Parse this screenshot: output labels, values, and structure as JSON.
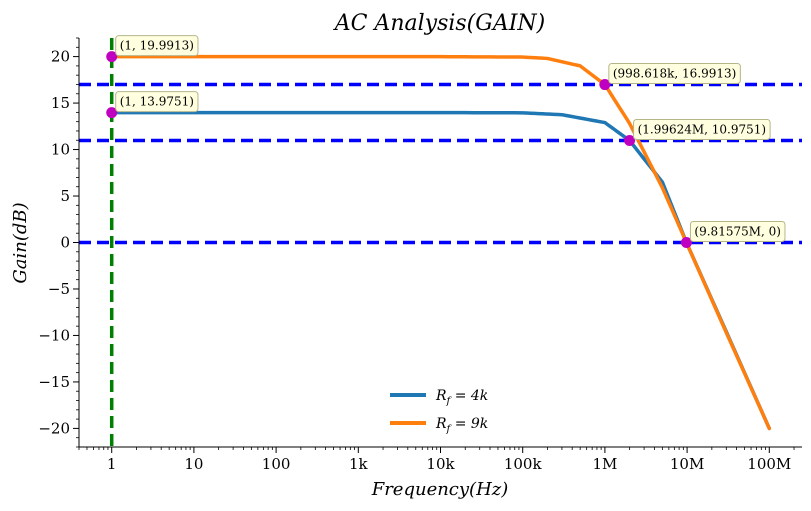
{
  "chart_data": {
    "type": "line",
    "title": "AC Analysis(GAIN)",
    "xlabel": "Frequency(Hz)",
    "ylabel": "Gain(dB)",
    "xscale": "log",
    "xlim": [
      0.4,
      250000000
    ],
    "ylim": [
      -22,
      22
    ],
    "x_ticks": [
      {
        "value": 1,
        "label": "1"
      },
      {
        "value": 10,
        "label": "10"
      },
      {
        "value": 100,
        "label": "100"
      },
      {
        "value": 1000,
        "label": "1k"
      },
      {
        "value": 10000,
        "label": "10k"
      },
      {
        "value": 100000,
        "label": "100k"
      },
      {
        "value": 1000000,
        "label": "1M"
      },
      {
        "value": 10000000,
        "label": "10M"
      },
      {
        "value": 100000000,
        "label": "100M"
      }
    ],
    "y_ticks": [
      {
        "value": 20,
        "label": "20"
      },
      {
        "value": 15,
        "label": "15"
      },
      {
        "value": 10,
        "label": "10"
      },
      {
        "value": 5,
        "label": "5"
      },
      {
        "value": 0,
        "label": "0"
      },
      {
        "value": -5,
        "label": "−5"
      },
      {
        "value": -10,
        "label": "−10"
      },
      {
        "value": -15,
        "label": "−15"
      },
      {
        "value": -20,
        "label": "−20"
      }
    ],
    "series": [
      {
        "name": "R_f = 4k",
        "legend_main": "R",
        "legend_sub": "f",
        "legend_rest": " = 4k",
        "color": "#1f77b4",
        "x": [
          1,
          10,
          100,
          1000,
          10000,
          100000,
          300000,
          1000000,
          1996240,
          5000000,
          9815750,
          30000000,
          100000000
        ],
        "y": [
          13.9751,
          13.975,
          13.975,
          13.975,
          13.974,
          13.95,
          13.75,
          12.9,
          10.9751,
          6.5,
          0,
          -9.6,
          -20
        ]
      },
      {
        "name": "R_f = 9k",
        "legend_main": "R",
        "legend_sub": "f",
        "legend_rest": " = 9k",
        "color": "#ff7f0e",
        "x": [
          1,
          10,
          100,
          1000,
          10000,
          100000,
          200000,
          500000,
          998618,
          2000000,
          5000000,
          9815750,
          30000000,
          100000000
        ],
        "y": [
          19.9913,
          19.991,
          19.991,
          19.991,
          19.99,
          19.95,
          19.8,
          19.0,
          16.9913,
          12.8,
          5.9,
          0,
          -9.7,
          -20
        ]
      }
    ],
    "reference_lines": [
      {
        "orientation": "horizontal",
        "value": 16.9913,
        "color": "#0000ff",
        "style": "dashed"
      },
      {
        "orientation": "horizontal",
        "value": 10.9751,
        "color": "#0000ff",
        "style": "dashed"
      },
      {
        "orientation": "horizontal",
        "value": 0,
        "color": "#0000ff",
        "style": "dashed"
      },
      {
        "orientation": "vertical",
        "value": 1,
        "color": "#008000",
        "style": "dashed"
      }
    ],
    "annotations": [
      {
        "x": 1,
        "y": 19.9913,
        "label": "(1, 19.9913)",
        "dx": 8,
        "dy": -11
      },
      {
        "x": 1,
        "y": 13.9751,
        "label": "(1, 13.9751)",
        "dx": 8,
        "dy": -11
      },
      {
        "x": 998618,
        "y": 16.9913,
        "label": "(998.618k, 16.9913)",
        "dx": 8,
        "dy": -11
      },
      {
        "x": 1996240,
        "y": 10.9751,
        "label": "(1.99624M, 10.9751)",
        "dx": 8,
        "dy": -11
      },
      {
        "x": 9815750,
        "y": 0,
        "label": "(9.81575M, 0)",
        "dx": 8,
        "dy": -11
      }
    ],
    "marker_color": "#c000c0",
    "legend_position": "lower-center",
    "grid": false
  }
}
